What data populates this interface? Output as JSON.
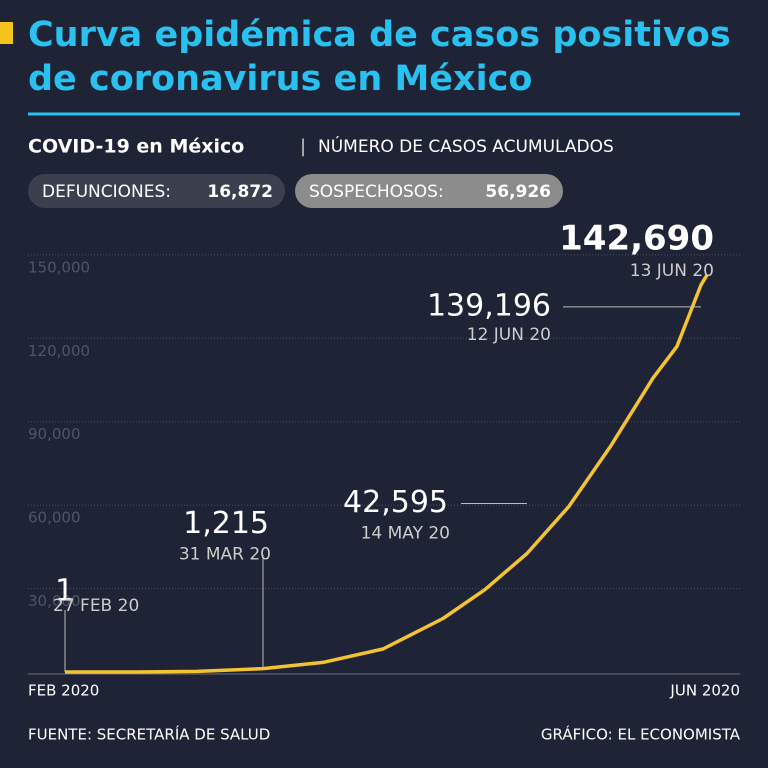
{
  "header": {
    "title_lines": [
      "Curva epidémica de casos positivos",
      "de coronavirus en México"
    ],
    "subtitle_bold": "COVID-19 en México",
    "separator": "|",
    "subtitle": "NÚMERO DE CASOS ACUMULADOS"
  },
  "stats": [
    {
      "label": "DEFUNCIONES:",
      "value": "16,872"
    },
    {
      "label": "SOSPECHOSOS:",
      "value": "56,926"
    }
  ],
  "footer": {
    "source": "FUENTE: SECRETARÍA DE SALUD",
    "credit": "GRÁFICO: EL ECONOMISTA"
  },
  "chart_data": {
    "type": "line",
    "x": [
      "2020-02-27",
      "2020-03-10",
      "2020-03-20",
      "2020-03-31",
      "2020-04-10",
      "2020-04-20",
      "2020-04-30",
      "2020-05-07",
      "2020-05-14",
      "2020-05-21",
      "2020-05-28",
      "2020-06-04",
      "2020-06-08",
      "2020-06-12",
      "2020-06-13"
    ],
    "xlim": [
      "2020-02-27",
      "2020-06-13"
    ],
    "xticks": [
      {
        "value": "2020-02-27",
        "label": "FEB 2020"
      },
      {
        "value": "2020-06-13",
        "label": "JUN 2020"
      }
    ],
    "series": [
      {
        "name": "Casos acumulados",
        "color": "#f4c430",
        "values": [
          1,
          7,
          203,
          1215,
          3441,
          8261,
          19224,
          29616,
          42595,
          59567,
          81400,
          105680,
          117103,
          139196,
          142690
        ],
        "value_labels": [
          "1",
          null,
          null,
          "1,215",
          null,
          null,
          null,
          null,
          "42,595",
          null,
          null,
          null,
          null,
          "139,196",
          "142,690"
        ],
        "x_labels": [
          "27 FEB 20",
          null,
          null,
          "31 MAR 20",
          null,
          null,
          null,
          null,
          "14 MAY 20",
          null,
          null,
          null,
          null,
          "12 JUN 20",
          "13 JUN 20"
        ]
      }
    ],
    "ylim": [
      0,
      160000
    ],
    "yticks": [
      {
        "value": 30000,
        "label": "30,000"
      },
      {
        "value": 60000,
        "label": "60,000"
      },
      {
        "value": 90000,
        "label": "90,000"
      },
      {
        "value": 120000,
        "label": "120,000"
      },
      {
        "value": 150000,
        "label": "150,000"
      }
    ],
    "grid": true
  }
}
